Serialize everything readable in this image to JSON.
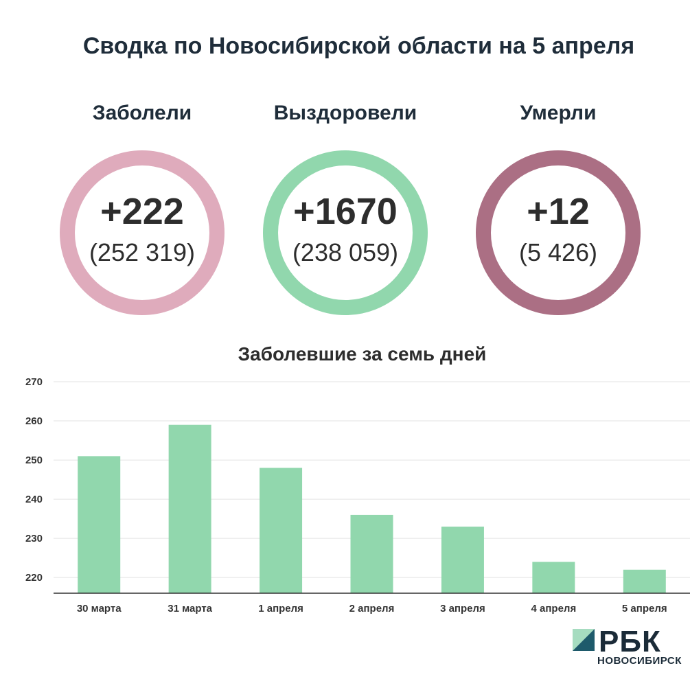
{
  "title": "Сводка по Новосибирской области на 5 апреля",
  "stats": [
    {
      "label": "Заболели",
      "delta": "+222",
      "total": "(252 319)",
      "color": "#dfabbc"
    },
    {
      "label": "Выздоровели",
      "delta": "+1670",
      "total": "(238 059)",
      "color": "#91d7ad"
    },
    {
      "label": "Умерли",
      "delta": "+12",
      "total": "(5 426)",
      "color": "#ab6f84"
    }
  ],
  "chart_data": {
    "type": "bar",
    "title": "Заболевшие за семь дней",
    "categories": [
      "30 марта",
      "31 марта",
      "1 апреля",
      "2 апреля",
      "3 апреля",
      "4 апреля",
      "5 апреля"
    ],
    "values": [
      251,
      259,
      248,
      236,
      233,
      224,
      222
    ],
    "ylim": [
      216,
      270
    ],
    "yticks": [
      220,
      230,
      240,
      250,
      260,
      270
    ],
    "grid": true,
    "bar_color": "#91d7ad"
  },
  "logo": {
    "word": "РБК",
    "sub": "НОВОСИБИРСК"
  }
}
